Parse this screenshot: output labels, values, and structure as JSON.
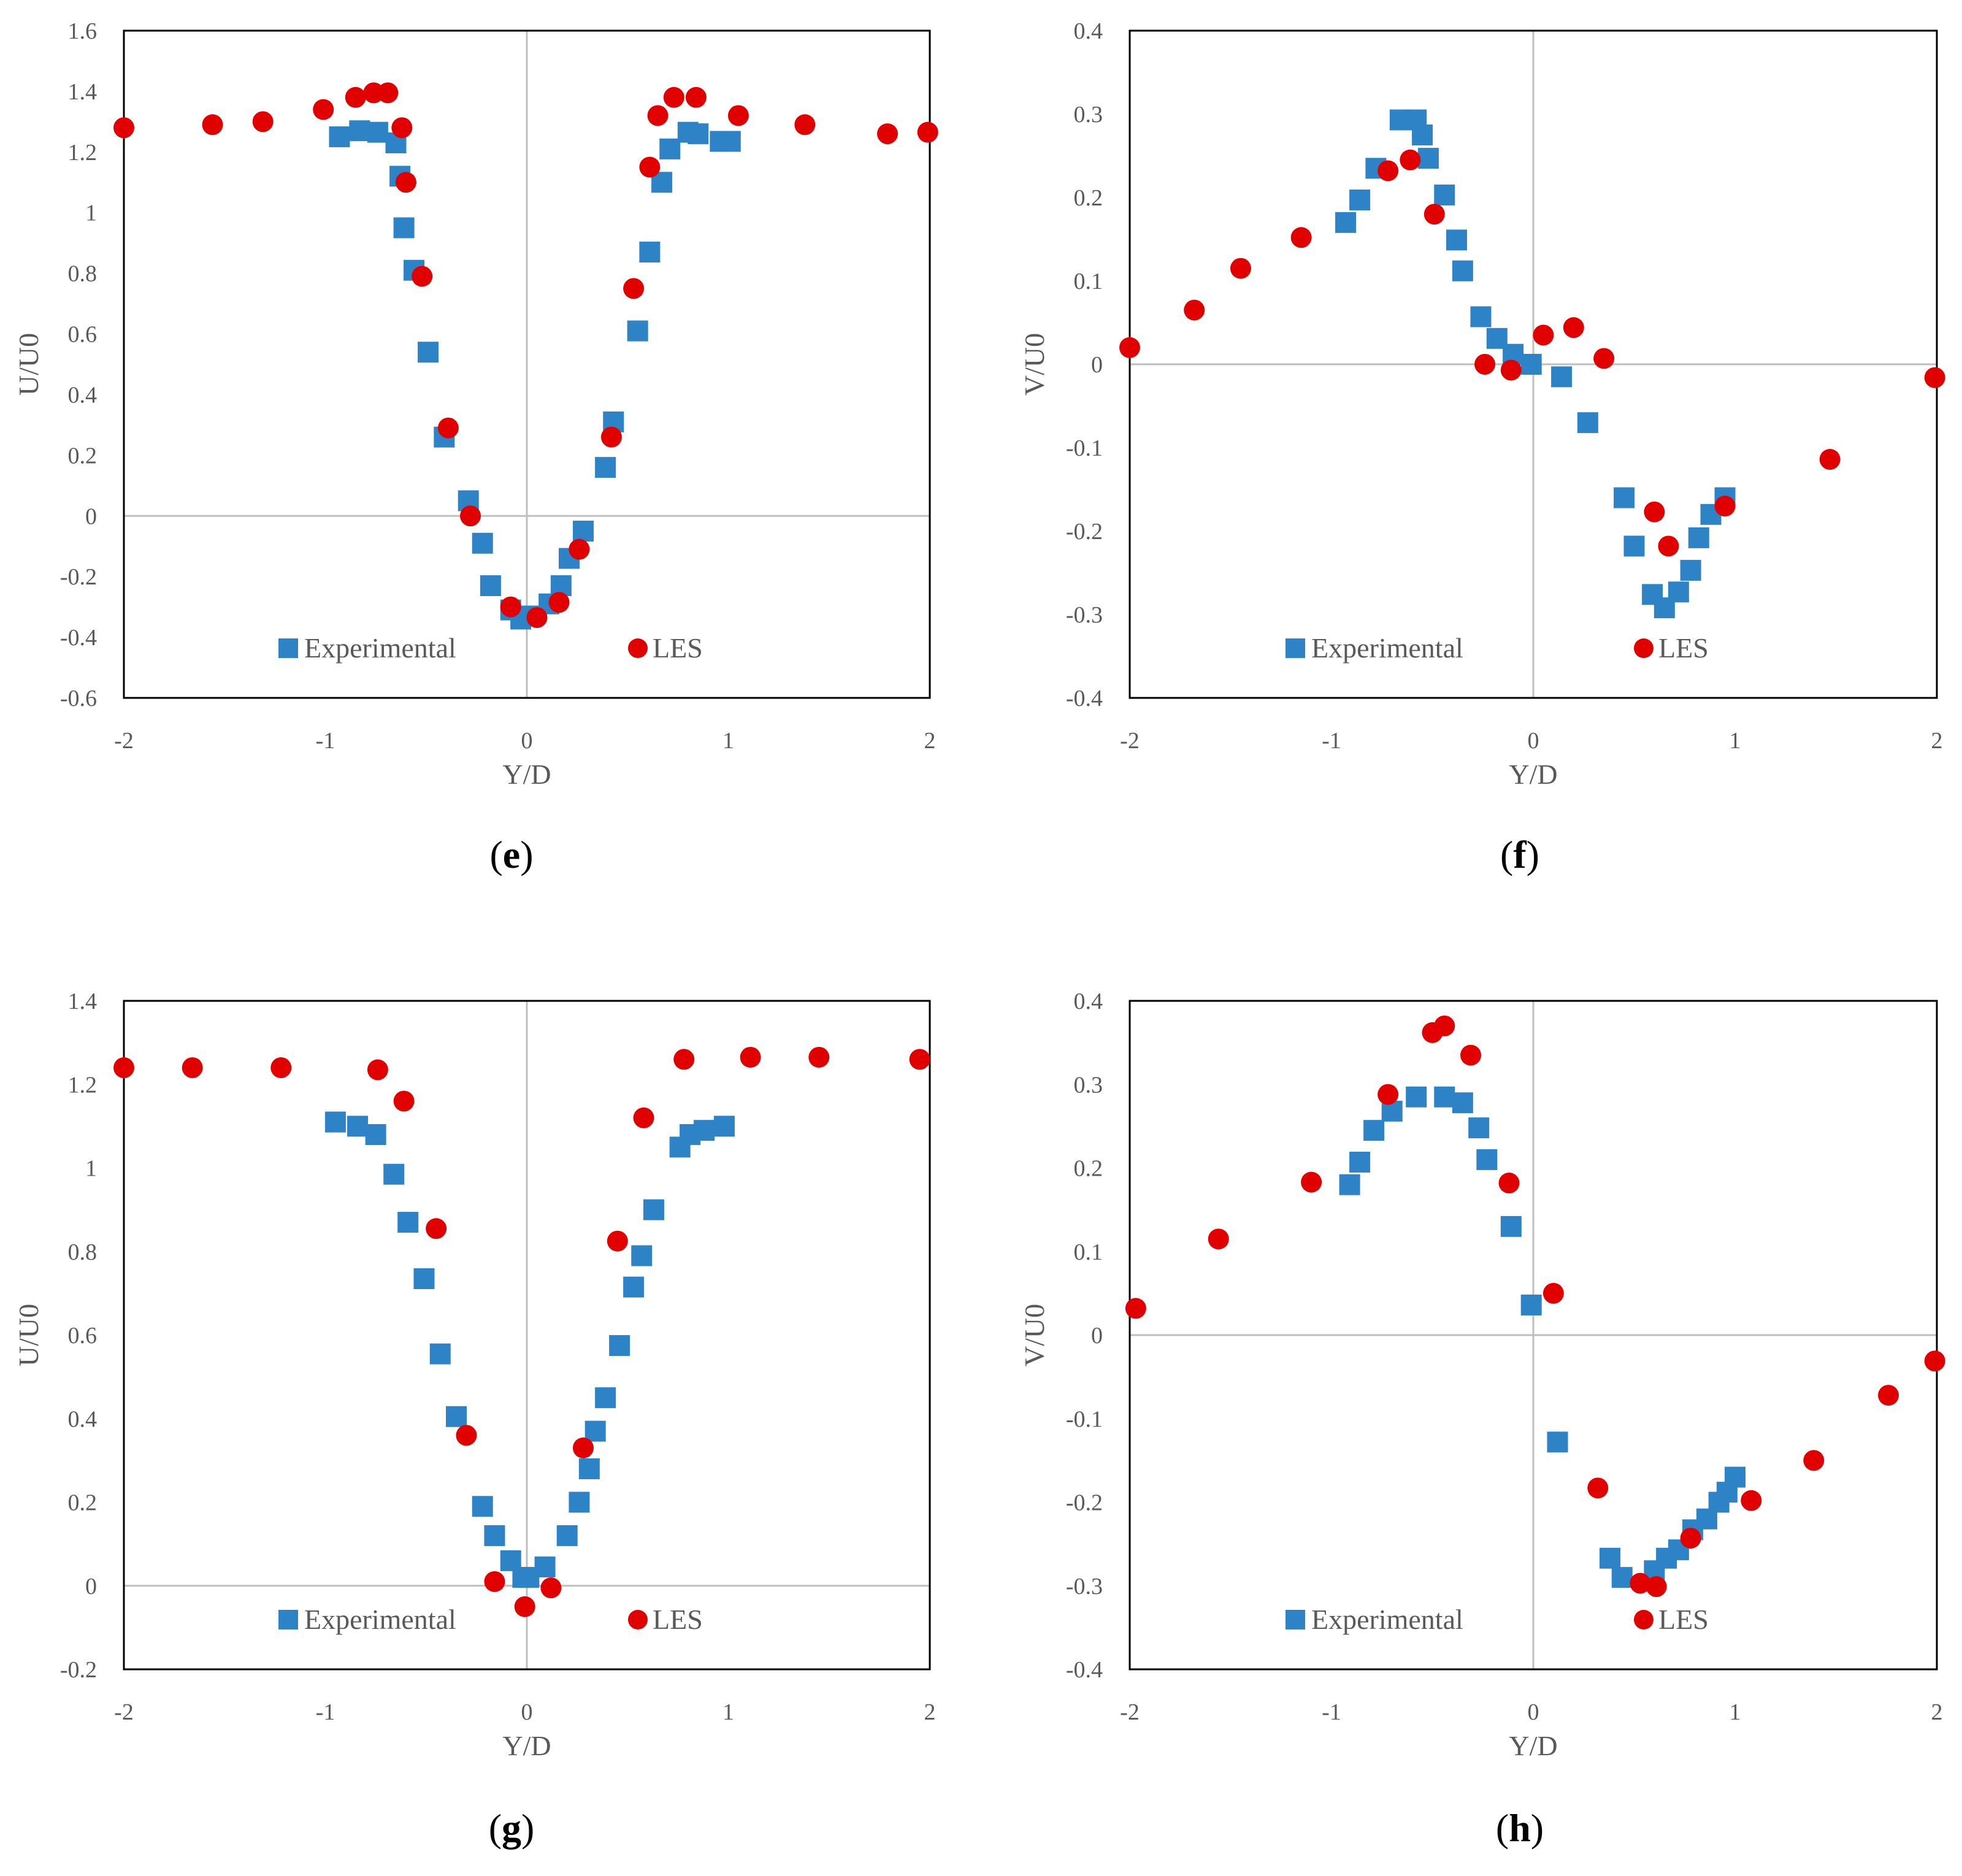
{
  "colors": {
    "experimental": "#2e83c6",
    "les": "#e00000",
    "axis": "#595959",
    "zero_line": "#bfbfbf"
  },
  "chart_data": [
    {
      "panel": "e",
      "type": "scatter",
      "caption_letter": "e",
      "xlabel": "Y/D",
      "ylabel": "U/U0",
      "xlim": [
        -2,
        2
      ],
      "ylim": [
        -0.6,
        1.6
      ],
      "xticks": [
        -2,
        -1,
        0,
        1,
        2
      ],
      "yticks": [
        -0.6,
        -0.4,
        -0.2,
        0,
        0.2,
        0.4,
        0.6,
        0.8,
        1,
        1.2,
        1.4,
        1.6
      ],
      "ytick_labels": [
        "-0.6",
        "-0.4",
        "-0.2",
        "0",
        "0.2",
        "0.4",
        "0.6",
        "0.8",
        "1",
        "1.2",
        "1.4",
        "1.6"
      ],
      "legend": [
        "Experimental",
        "LES"
      ],
      "series": [
        {
          "name": "Experimental",
          "marker": "square",
          "points": [
            [
              -0.93,
              1.25
            ],
            [
              -0.83,
              1.27
            ],
            [
              -0.74,
              1.265
            ],
            [
              -0.65,
              1.23
            ],
            [
              -0.63,
              1.12
            ],
            [
              -0.61,
              0.95
            ],
            [
              -0.56,
              0.81
            ],
            [
              -0.49,
              0.54
            ],
            [
              -0.41,
              0.26
            ],
            [
              -0.29,
              0.05
            ],
            [
              -0.22,
              -0.09
            ],
            [
              -0.18,
              -0.23
            ],
            [
              -0.08,
              -0.31
            ],
            [
              -0.03,
              -0.34
            ],
            [
              0.02,
              -0.33
            ],
            [
              0.11,
              -0.29
            ],
            [
              0.17,
              -0.23
            ],
            [
              0.21,
              -0.14
            ],
            [
              0.28,
              -0.05
            ],
            [
              0.39,
              0.16
            ],
            [
              0.43,
              0.31
            ],
            [
              0.55,
              0.61
            ],
            [
              0.61,
              0.87
            ],
            [
              0.67,
              1.1
            ],
            [
              0.71,
              1.21
            ],
            [
              0.8,
              1.265
            ],
            [
              0.85,
              1.26
            ],
            [
              0.96,
              1.235
            ],
            [
              1.01,
              1.235
            ]
          ]
        },
        {
          "name": "LES",
          "marker": "circle",
          "points": [
            [
              -2.0,
              1.28
            ],
            [
              -1.56,
              1.29
            ],
            [
              -1.31,
              1.3
            ],
            [
              -1.01,
              1.34
            ],
            [
              -0.85,
              1.38
            ],
            [
              -0.76,
              1.395
            ],
            [
              -0.69,
              1.395
            ],
            [
              -0.62,
              1.28
            ],
            [
              -0.6,
              1.1
            ],
            [
              -0.52,
              0.79
            ],
            [
              -0.39,
              0.29
            ],
            [
              -0.28,
              0.0
            ],
            [
              -0.08,
              -0.3
            ],
            [
              0.05,
              -0.335
            ],
            [
              0.16,
              -0.285
            ],
            [
              0.26,
              -0.11
            ],
            [
              0.42,
              0.26
            ],
            [
              0.53,
              0.75
            ],
            [
              0.61,
              1.15
            ],
            [
              0.65,
              1.32
            ],
            [
              0.73,
              1.38
            ],
            [
              0.84,
              1.38
            ],
            [
              1.05,
              1.32
            ],
            [
              1.38,
              1.29
            ],
            [
              1.79,
              1.26
            ],
            [
              1.99,
              1.265
            ]
          ]
        }
      ]
    },
    {
      "panel": "f",
      "type": "scatter",
      "caption_letter": "f",
      "xlabel": "Y/D",
      "ylabel": "V/U0",
      "xlim": [
        -2,
        2
      ],
      "ylim": [
        -0.4,
        0.4
      ],
      "xticks": [
        -2,
        -1,
        0,
        1,
        2
      ],
      "yticks": [
        -0.4,
        -0.3,
        -0.2,
        -0.1,
        0,
        0.1,
        0.2,
        0.3,
        0.4
      ],
      "ytick_labels": [
        "-0.4",
        "-0.3",
        "-0.2",
        "-0.1",
        "0",
        "0.1",
        "0.2",
        "0.3",
        "0.4"
      ],
      "legend": [
        "Experimental",
        "LES"
      ],
      "series": [
        {
          "name": "Experimental",
          "marker": "square",
          "points": [
            [
              -0.93,
              0.17
            ],
            [
              -0.86,
              0.197
            ],
            [
              -0.78,
              0.235
            ],
            [
              -0.66,
              0.293
            ],
            [
              -0.58,
              0.293
            ],
            [
              -0.55,
              0.275
            ],
            [
              -0.52,
              0.247
            ],
            [
              -0.44,
              0.203
            ],
            [
              -0.38,
              0.149
            ],
            [
              -0.35,
              0.112
            ],
            [
              -0.26,
              0.057
            ],
            [
              -0.18,
              0.031
            ],
            [
              -0.1,
              0.012
            ],
            [
              -0.01,
              0.0
            ],
            [
              0.14,
              -0.015
            ],
            [
              0.27,
              -0.07
            ],
            [
              0.45,
              -0.16
            ],
            [
              0.5,
              -0.218
            ],
            [
              0.59,
              -0.276
            ],
            [
              0.65,
              -0.292
            ],
            [
              0.72,
              -0.273
            ],
            [
              0.78,
              -0.247
            ],
            [
              0.82,
              -0.208
            ],
            [
              0.88,
              -0.18
            ],
            [
              0.95,
              -0.16
            ]
          ]
        },
        {
          "name": "LES",
          "marker": "circle",
          "points": [
            [
              -2.0,
              0.02
            ],
            [
              -1.68,
              0.065
            ],
            [
              -1.45,
              0.115
            ],
            [
              -1.15,
              0.152
            ],
            [
              -0.72,
              0.232
            ],
            [
              -0.61,
              0.245
            ],
            [
              -0.49,
              0.18
            ],
            [
              -0.24,
              0.0
            ],
            [
              -0.11,
              -0.007
            ],
            [
              0.05,
              0.035
            ],
            [
              0.2,
              0.044
            ],
            [
              0.35,
              0.007
            ],
            [
              0.6,
              -0.177
            ],
            [
              0.67,
              -0.218
            ],
            [
              0.95,
              -0.17
            ],
            [
              1.47,
              -0.114
            ],
            [
              1.99,
              -0.016
            ]
          ]
        }
      ]
    },
    {
      "panel": "g",
      "type": "scatter",
      "caption_letter": "g",
      "xlabel": "Y/D",
      "ylabel": "U/U0",
      "xlim": [
        -2,
        2
      ],
      "ylim": [
        -0.2,
        1.4
      ],
      "xticks": [
        -2,
        -1,
        0,
        1,
        2
      ],
      "yticks": [
        -0.2,
        0,
        0.2,
        0.4,
        0.6,
        0.8,
        1,
        1.2,
        1.4
      ],
      "ytick_labels": [
        "-0.2",
        "0",
        "0.2",
        "0.4",
        "0.6",
        "0.8",
        "1",
        "1.2",
        "1.4"
      ],
      "legend": [
        "Experimental",
        "LES"
      ],
      "series": [
        {
          "name": "Experimental",
          "marker": "square",
          "points": [
            [
              -0.95,
              1.11
            ],
            [
              -0.84,
              1.1
            ],
            [
              -0.75,
              1.08
            ],
            [
              -0.66,
              0.985
            ],
            [
              -0.59,
              0.87
            ],
            [
              -0.51,
              0.735
            ],
            [
              -0.43,
              0.555
            ],
            [
              -0.35,
              0.405
            ],
            [
              -0.22,
              0.19
            ],
            [
              -0.16,
              0.12
            ],
            [
              -0.08,
              0.06
            ],
            [
              -0.02,
              0.02
            ],
            [
              0.01,
              0.02
            ],
            [
              0.09,
              0.045
            ],
            [
              0.2,
              0.12
            ],
            [
              0.26,
              0.2
            ],
            [
              0.31,
              0.28
            ],
            [
              0.34,
              0.37
            ],
            [
              0.39,
              0.45
            ],
            [
              0.46,
              0.575
            ],
            [
              0.53,
              0.715
            ],
            [
              0.57,
              0.79
            ],
            [
              0.63,
              0.9
            ],
            [
              0.76,
              1.05
            ],
            [
              0.81,
              1.08
            ],
            [
              0.88,
              1.09
            ],
            [
              0.98,
              1.1
            ]
          ]
        },
        {
          "name": "LES",
          "marker": "circle",
          "points": [
            [
              -2.0,
              1.24
            ],
            [
              -1.66,
              1.24
            ],
            [
              -1.22,
              1.24
            ],
            [
              -0.74,
              1.235
            ],
            [
              -0.61,
              1.16
            ],
            [
              -0.45,
              0.855
            ],
            [
              -0.3,
              0.36
            ],
            [
              -0.16,
              0.01
            ],
            [
              -0.01,
              -0.05
            ],
            [
              0.12,
              -0.005
            ],
            [
              0.28,
              0.33
            ],
            [
              0.45,
              0.825
            ],
            [
              0.58,
              1.12
            ],
            [
              0.78,
              1.26
            ],
            [
              1.11,
              1.265
            ],
            [
              1.45,
              1.265
            ],
            [
              1.95,
              1.26
            ]
          ]
        }
      ]
    },
    {
      "panel": "h",
      "type": "scatter",
      "caption_letter": "h",
      "xlabel": "Y/D",
      "ylabel": "V/U0",
      "xlim": [
        -2,
        2
      ],
      "ylim": [
        -0.4,
        0.4
      ],
      "xticks": [
        -2,
        -1,
        0,
        1,
        2
      ],
      "yticks": [
        -0.4,
        -0.3,
        -0.2,
        -0.1,
        0,
        0.1,
        0.2,
        0.3,
        0.4
      ],
      "ytick_labels": [
        "-0.4",
        "-0.3",
        "-0.2",
        "-0.1",
        "0",
        "0.1",
        "0.2",
        "0.3",
        "0.4"
      ],
      "legend": [
        "Experimental",
        "LES"
      ],
      "series": [
        {
          "name": "Experimental",
          "marker": "square",
          "points": [
            [
              -0.91,
              0.18
            ],
            [
              -0.86,
              0.207
            ],
            [
              -0.79,
              0.245
            ],
            [
              -0.7,
              0.268
            ],
            [
              -0.58,
              0.285
            ],
            [
              -0.44,
              0.285
            ],
            [
              -0.35,
              0.278
            ],
            [
              -0.27,
              0.248
            ],
            [
              -0.23,
              0.21
            ],
            [
              -0.11,
              0.13
            ],
            [
              -0.01,
              0.036
            ],
            [
              0.12,
              -0.128
            ],
            [
              0.38,
              -0.267
            ],
            [
              0.44,
              -0.29
            ],
            [
              0.6,
              -0.282
            ],
            [
              0.66,
              -0.267
            ],
            [
              0.72,
              -0.257
            ],
            [
              0.79,
              -0.233
            ],
            [
              0.86,
              -0.22
            ],
            [
              0.92,
              -0.2
            ],
            [
              0.96,
              -0.188
            ],
            [
              1.0,
              -0.17
            ]
          ]
        },
        {
          "name": "LES",
          "marker": "circle",
          "points": [
            [
              -1.97,
              0.032
            ],
            [
              -1.56,
              0.115
            ],
            [
              -1.1,
              0.183
            ],
            [
              -0.72,
              0.288
            ],
            [
              -0.5,
              0.362
            ],
            [
              -0.44,
              0.37
            ],
            [
              -0.31,
              0.335
            ],
            [
              -0.12,
              0.182
            ],
            [
              0.1,
              0.05
            ],
            [
              0.32,
              -0.183
            ],
            [
              0.53,
              -0.297
            ],
            [
              0.61,
              -0.301
            ],
            [
              0.78,
              -0.243
            ],
            [
              1.08,
              -0.198
            ],
            [
              1.39,
              -0.15
            ],
            [
              1.76,
              -0.072
            ],
            [
              1.99,
              -0.031
            ]
          ]
        }
      ]
    }
  ]
}
